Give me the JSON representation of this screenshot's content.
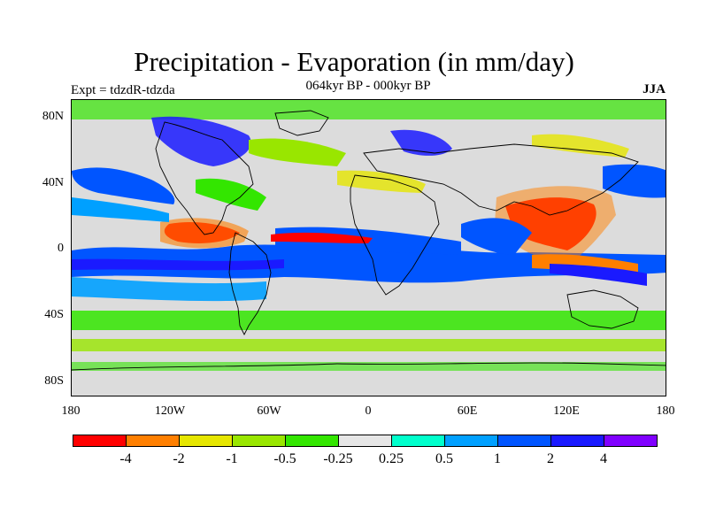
{
  "title": "Precipitation - Evaporation (in mm/day)",
  "subtitle": "064kyr BP - 000kyr BP",
  "expt": "Expt = tdzdR-tdzda",
  "season": "JJA",
  "y_ticks": [
    "80N",
    "40N",
    "0",
    "40S",
    "80S"
  ],
  "x_ticks": [
    "180",
    "120W",
    "60W",
    "0",
    "60E",
    "120E",
    "180"
  ],
  "colorbar": {
    "colors": [
      "#ff0000",
      "#ff7f00",
      "#e6e600",
      "#99e600",
      "#33e600",
      "#e6e6e6",
      "#00ffcc",
      "#00a0ff",
      "#0055ff",
      "#1a1aff",
      "#8000ff"
    ],
    "labels": [
      "-4",
      "-2",
      "-1",
      "-0.5",
      "-0.25",
      "0.25",
      "0.5",
      "1",
      "2",
      "4"
    ]
  }
}
